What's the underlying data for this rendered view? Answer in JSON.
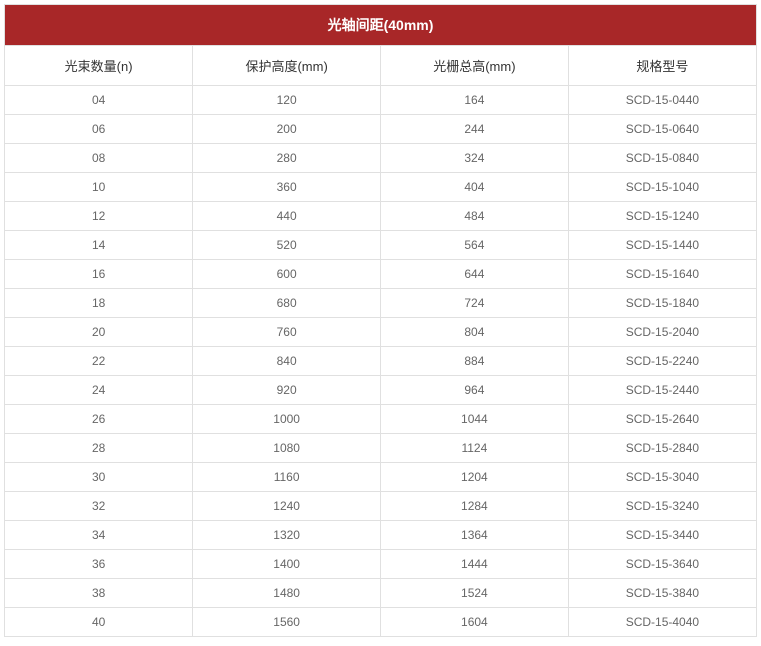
{
  "table": {
    "title": "光轴间距(40mm)",
    "title_bg_color": "#a82728",
    "title_text_color": "#ffffff",
    "border_color": "#e0e0e0",
    "header_text_color": "#333333",
    "cell_text_color": "#666666",
    "background_color": "#ffffff",
    "title_fontsize": 14,
    "header_fontsize": 13,
    "cell_fontsize": 12,
    "columns": [
      "光束数量(n)",
      "保护高度(mm)",
      "光栅总高(mm)",
      "规格型号"
    ],
    "rows": [
      [
        "04",
        "120",
        "164",
        "SCD-15-0440"
      ],
      [
        "06",
        "200",
        "244",
        "SCD-15-0640"
      ],
      [
        "08",
        "280",
        "324",
        "SCD-15-0840"
      ],
      [
        "10",
        "360",
        "404",
        "SCD-15-1040"
      ],
      [
        "12",
        "440",
        "484",
        "SCD-15-1240"
      ],
      [
        "14",
        "520",
        "564",
        "SCD-15-1440"
      ],
      [
        "16",
        "600",
        "644",
        "SCD-15-1640"
      ],
      [
        "18",
        "680",
        "724",
        "SCD-15-1840"
      ],
      [
        "20",
        "760",
        "804",
        "SCD-15-2040"
      ],
      [
        "22",
        "840",
        "884",
        "SCD-15-2240"
      ],
      [
        "24",
        "920",
        "964",
        "SCD-15-2440"
      ],
      [
        "26",
        "1000",
        "1044",
        "SCD-15-2640"
      ],
      [
        "28",
        "1080",
        "1124",
        "SCD-15-2840"
      ],
      [
        "30",
        "1160",
        "1204",
        "SCD-15-3040"
      ],
      [
        "32",
        "1240",
        "1284",
        "SCD-15-3240"
      ],
      [
        "34",
        "1320",
        "1364",
        "SCD-15-3440"
      ],
      [
        "36",
        "1400",
        "1444",
        "SCD-15-3640"
      ],
      [
        "38",
        "1480",
        "1524",
        "SCD-15-3840"
      ],
      [
        "40",
        "1560",
        "1604",
        "SCD-15-4040"
      ]
    ]
  }
}
